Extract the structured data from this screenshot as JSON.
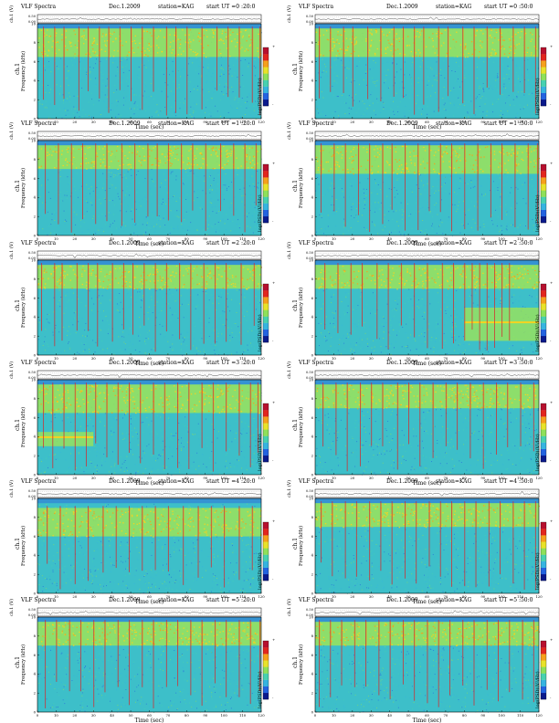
{
  "chart_data": [
    {
      "type": "heatmap",
      "title": "VLF Spectra",
      "date": "Dec.1.2009",
      "station": "station=KAG",
      "start": "start  UT  =0 :20:0",
      "ch_label": "ch.1 (V)",
      "ch_ticks": [
        "0.00",
        "0.50"
      ],
      "channel": "ch.1",
      "ylabel": "Frequency  (kHz)",
      "xlabel": "Time  (sec)",
      "x_ticks": [
        "0",
        "10",
        "20",
        "30",
        "40",
        "50",
        "60",
        "70",
        "80",
        "90",
        "100",
        "110",
        "120"
      ],
      "y_ticks": [
        "0",
        "2",
        "4",
        "6",
        "8",
        "10"
      ],
      "xlim": [
        0,
        120
      ],
      "ylim": [
        0,
        10
      ],
      "colorbar_label": "log(PSD)(V²/Hz)",
      "colorbar_ticks": [
        "-",
        "+"
      ],
      "band_khz": [
        6.5,
        9.5
      ],
      "bursts_sec": [
        3,
        9,
        14,
        22,
        27,
        33,
        38,
        44,
        50,
        56,
        62,
        69,
        74,
        80,
        88,
        96,
        102,
        108,
        115,
        119
      ]
    },
    {
      "type": "heatmap",
      "title": "VLF Spectra",
      "date": "Dec.1.2009",
      "station": "station=KAG",
      "start": "start  UT  =0 :50:0",
      "ch_label": "ch.1 (V)",
      "ch_ticks": [
        "0.00",
        "0.50"
      ],
      "channel": "ch.1",
      "ylabel": "Frequency  (kHz)",
      "xlabel": "Time  (sec)",
      "x_ticks": [
        "0",
        "10",
        "20",
        "30",
        "40",
        "50",
        "60",
        "70",
        "80",
        "90",
        "100",
        "110",
        "120"
      ],
      "y_ticks": [
        "0",
        "2",
        "4",
        "6",
        "8",
        "10"
      ],
      "xlim": [
        0,
        120
      ],
      "ylim": [
        0,
        10
      ],
      "colorbar_label": "log(PSD)(V²/Hz)",
      "colorbar_ticks": [
        "-",
        "+"
      ],
      "band_khz": [
        6.5,
        9.5
      ],
      "bursts_sec": [
        2,
        8,
        15,
        20,
        28,
        35,
        42,
        47,
        53,
        58,
        66,
        71,
        79,
        85,
        92,
        99,
        106,
        112,
        118
      ]
    },
    {
      "type": "heatmap",
      "title": "VLF Spectra",
      "date": "Dec.1.2009",
      "station": "station=KAG",
      "start": "start  UT  =1 :20:0",
      "ch_label": "ch.1 (V)",
      "ch_ticks": [
        "0.00",
        "0.50"
      ],
      "channel": "ch.1",
      "ylabel": "Frequency  (kHz)",
      "xlabel": "Time  (sec)",
      "x_ticks": [
        "0",
        "10",
        "20",
        "30",
        "40",
        "50",
        "60",
        "70",
        "80",
        "90",
        "100",
        "110",
        "120"
      ],
      "y_ticks": [
        "0",
        "2",
        "4",
        "6",
        "8",
        "10"
      ],
      "xlim": [
        0,
        120
      ],
      "ylim": [
        0,
        10
      ],
      "colorbar_label": "log(PSD)(V²/Hz)",
      "colorbar_ticks": [
        "-",
        "+"
      ],
      "band_khz": [
        7.0,
        9.5
      ],
      "bursts_sec": [
        4,
        11,
        18,
        24,
        31,
        37,
        45,
        52,
        59,
        64,
        70,
        77,
        83,
        90,
        98,
        105,
        111,
        117
      ]
    },
    {
      "type": "heatmap",
      "title": "VLF Spectra",
      "date": "Dec.1.2009",
      "station": "station=KAG",
      "start": "start  UT  =1 :50:0",
      "ch_label": "ch.1 (V)",
      "ch_ticks": [
        "0.00",
        "0.50"
      ],
      "channel": "ch.1",
      "ylabel": "Frequency  (kHz)",
      "xlabel": "Time  (sec)",
      "x_ticks": [
        "0",
        "10",
        "20",
        "30",
        "40",
        "50",
        "60",
        "70",
        "80",
        "90",
        "100",
        "110",
        "120"
      ],
      "y_ticks": [
        "0",
        "2",
        "4",
        "6",
        "8",
        "10"
      ],
      "xlim": [
        0,
        120
      ],
      "ylim": [
        0,
        10
      ],
      "colorbar_label": "log(PSD)(V²/Hz)",
      "colorbar_ticks": [
        "-",
        "+"
      ],
      "band_khz": [
        6.5,
        9.5
      ],
      "bursts_sec": [
        3,
        10,
        16,
        23,
        29,
        36,
        41,
        48,
        55,
        61,
        67,
        73,
        80,
        87,
        94,
        100,
        107,
        114,
        119
      ]
    },
    {
      "type": "heatmap",
      "title": "VLF Spectra",
      "date": "Dec.1.2009",
      "station": "station=KAG",
      "start": "start  UT  =2 :20:0",
      "ch_label": "ch.1 (V)",
      "ch_ticks": [
        "0.00",
        "0.50"
      ],
      "channel": "ch.1",
      "ylabel": "Frequency  (kHz)",
      "xlabel": "Time  (sec)",
      "x_ticks": [
        "0",
        "10",
        "20",
        "30",
        "40",
        "50",
        "60",
        "70",
        "80",
        "90",
        "100",
        "110",
        "120"
      ],
      "y_ticks": [
        "0",
        "2",
        "4",
        "6",
        "8",
        "10"
      ],
      "xlim": [
        0,
        120
      ],
      "ylim": [
        0,
        10
      ],
      "colorbar_label": "log(PSD)(V²/Hz)",
      "colorbar_ticks": [
        "-",
        "+"
      ],
      "band_khz": [
        7.0,
        9.5
      ],
      "bursts_sec": [
        2,
        9,
        13,
        21,
        27,
        32,
        40,
        46,
        51,
        57,
        63,
        69,
        76,
        82,
        89,
        95,
        101,
        109,
        116
      ]
    },
    {
      "type": "heatmap",
      "title": "VLF Spectra",
      "date": "Dec.1.2009",
      "station": "station=KAG",
      "start": "start  UT  =2 :50:0",
      "ch_label": "ch.1 (V)",
      "ch_ticks": [
        "0.00",
        "0.50"
      ],
      "channel": "ch.1",
      "ylabel": "Frequency  (kHz)",
      "xlabel": "Time  (sec)",
      "x_ticks": [
        "0",
        "10",
        "20",
        "30",
        "40",
        "50",
        "60",
        "70",
        "80",
        "90",
        "100",
        "110",
        "120"
      ],
      "y_ticks": [
        "0",
        "2",
        "4",
        "6",
        "8",
        "10"
      ],
      "xlim": [
        0,
        120
      ],
      "ylim": [
        0,
        10
      ],
      "colorbar_label": "log(PSD)(V²/Hz)",
      "colorbar_ticks": [
        "-",
        "+"
      ],
      "band_khz": [
        7.0,
        9.5
      ],
      "bursts_sec": [
        5,
        12,
        19,
        25,
        33,
        39,
        46,
        53,
        60,
        68,
        74,
        80,
        84,
        88,
        92,
        96,
        100,
        104
      ],
      "low_patch": {
        "t0": 80,
        "t1": 120,
        "f0": 1.5,
        "f1": 5.0
      }
    },
    {
      "type": "heatmap",
      "title": "VLF Spectra",
      "date": "Dec.1.2009",
      "station": "station=KAG",
      "start": "start  UT  =3 :20:0",
      "ch_label": "ch.1 (V)",
      "ch_ticks": [
        "0.00",
        "0.50"
      ],
      "channel": "ch.1",
      "ylabel": "Frequency  (kHz)",
      "xlabel": "Time  (sec)",
      "x_ticks": [
        "0",
        "10",
        "20",
        "30",
        "40",
        "50",
        "60",
        "70",
        "80",
        "90",
        "100",
        "110",
        "120"
      ],
      "y_ticks": [
        "0",
        "2",
        "4",
        "6",
        "8",
        "10"
      ],
      "xlim": [
        0,
        120
      ],
      "ylim": [
        0,
        10
      ],
      "colorbar_label": "log(PSD)(V²/Hz)",
      "colorbar_ticks": [
        "-",
        "+"
      ],
      "band_khz": [
        6.5,
        9.5
      ],
      "bursts_sec": [
        3,
        8,
        14,
        20,
        26,
        31,
        37,
        43,
        49,
        55,
        62,
        68,
        75,
        81,
        88,
        94,
        101,
        108,
        114,
        118
      ],
      "low_patch": {
        "t0": 0,
        "t1": 30,
        "f0": 3.0,
        "f1": 4.5
      }
    },
    {
      "type": "heatmap",
      "title": "VLF Spectra",
      "date": "Dec.1.2009",
      "station": "station=KAG",
      "start": "start  UT  =3 :50:0",
      "ch_label": "ch.1 (V)",
      "ch_ticks": [
        "0.00",
        "0.50"
      ],
      "channel": "ch.1",
      "ylabel": "Frequency  (kHz)",
      "xlabel": "Time  (sec)",
      "x_ticks": [
        "0",
        "10",
        "20",
        "30",
        "40",
        "50",
        "60",
        "70",
        "80",
        "90",
        "100",
        "110",
        "120"
      ],
      "y_ticks": [
        "0",
        "2",
        "4",
        "6",
        "8",
        "10"
      ],
      "xlim": [
        0,
        120
      ],
      "ylim": [
        0,
        10
      ],
      "colorbar_label": "log(PSD)(V²/Hz)",
      "colorbar_ticks": [
        "-",
        "+"
      ],
      "band_khz": [
        7.0,
        9.5
      ],
      "bursts_sec": [
        4,
        11,
        17,
        24,
        30,
        36,
        44,
        50,
        56,
        63,
        70,
        76,
        83,
        90,
        97,
        103,
        110,
        117
      ]
    },
    {
      "type": "heatmap",
      "title": "VLF Spectra",
      "date": "Dec.1.2009",
      "station": "station=KAG",
      "start": "start  UT  =4 :20:0",
      "ch_label": "ch.1 (V)",
      "ch_ticks": [
        "0.00",
        "0.50"
      ],
      "channel": "ch.1",
      "ylabel": "Frequency  (kHz)",
      "xlabel": "Time  (sec)",
      "x_ticks": [
        "0",
        "10",
        "20",
        "30",
        "40",
        "50",
        "60",
        "70",
        "80",
        "90",
        "100",
        "110",
        "120"
      ],
      "y_ticks": [
        "0",
        "2",
        "4",
        "6",
        "8",
        "10"
      ],
      "xlim": [
        0,
        120
      ],
      "ylim": [
        0,
        10
      ],
      "colorbar_label": "log(PSD)(V²/Hz)",
      "colorbar_ticks": [
        "-",
        "+"
      ],
      "band_khz": [
        6.0,
        9.0
      ],
      "bursts_sec": [
        5,
        12,
        20,
        27,
        35,
        42,
        49,
        56,
        63,
        70,
        78,
        86,
        93,
        100,
        108,
        115
      ]
    },
    {
      "type": "heatmap",
      "title": "VLF Spectra",
      "date": "Dec.1.2009",
      "station": "station=KAG",
      "start": "start  UT  =4 :50:0",
      "ch_label": "ch.1 (V)",
      "ch_ticks": [
        "0.00",
        "0.50"
      ],
      "channel": "ch.1",
      "ylabel": "Frequency  (kHz)",
      "xlabel": "Time  (sec)",
      "x_ticks": [
        "0",
        "10",
        "20",
        "30",
        "40",
        "50",
        "60",
        "70",
        "80",
        "90",
        "100",
        "110",
        "120"
      ],
      "y_ticks": [
        "0",
        "2",
        "4",
        "6",
        "8",
        "10"
      ],
      "xlim": [
        0,
        120
      ],
      "ylim": [
        0,
        10
      ],
      "colorbar_label": "log(PSD)(V²/Hz)",
      "colorbar_ticks": [
        "-",
        "+"
      ],
      "band_khz": [
        7.0,
        9.5
      ],
      "bursts_sec": [
        3,
        9,
        16,
        22,
        29,
        35,
        41,
        48,
        54,
        61,
        67,
        73,
        80,
        86,
        93,
        99,
        106,
        112,
        118
      ]
    },
    {
      "type": "heatmap",
      "title": "VLF Spectra",
      "date": "Dec.1.2009",
      "station": "station=KAG",
      "start": "start  UT  =5 :20:0",
      "ch_label": "ch.1 (V)",
      "ch_ticks": [
        "0.00",
        "0.50"
      ],
      "channel": "ch.1",
      "ylabel": "Frequency  (kHz)",
      "xlabel": "Time  (sec)",
      "x_ticks": [
        "0",
        "10",
        "20",
        "30",
        "40",
        "50",
        "60",
        "70",
        "80",
        "90",
        "100",
        "110",
        "120"
      ],
      "y_ticks": [
        "0",
        "2",
        "4",
        "6",
        "8",
        "10"
      ],
      "xlim": [
        0,
        120
      ],
      "ylim": [
        0,
        10
      ],
      "colorbar_label": "log(PSD)(V²/Hz)",
      "colorbar_ticks": [
        "-",
        "+"
      ],
      "band_khz": [
        7.0,
        9.5
      ],
      "bursts_sec": [
        4,
        10,
        17,
        23,
        30,
        36,
        43,
        49,
        56,
        62,
        69,
        75,
        82,
        88,
        95,
        101,
        108,
        114,
        119
      ]
    },
    {
      "type": "heatmap",
      "title": "VLF Spectra",
      "date": "Dec.1.2009",
      "station": "station=KAG",
      "start": "start  UT  =5 :50:0",
      "ch_label": "ch.1 (V)",
      "ch_ticks": [
        "0.00",
        "0.50"
      ],
      "channel": "ch.1",
      "ylabel": "Frequency  (kHz)",
      "xlabel": "Time  (sec)",
      "x_ticks": [
        "0",
        "10",
        "20",
        "30",
        "40",
        "50",
        "60",
        "70",
        "80",
        "90",
        "100",
        "110",
        "120"
      ],
      "y_ticks": [
        "0",
        "2",
        "4",
        "6",
        "8",
        "10"
      ],
      "xlim": [
        0,
        120
      ],
      "ylim": [
        0,
        10
      ],
      "colorbar_label": "log(PSD)(V²/Hz)",
      "colorbar_ticks": [
        "-",
        "+"
      ],
      "band_khz": [
        7.0,
        9.5
      ],
      "bursts_sec": [
        2,
        8,
        14,
        21,
        27,
        34,
        40,
        47,
        53,
        60,
        66,
        72,
        79,
        85,
        92,
        98,
        104,
        111,
        117
      ]
    }
  ],
  "colors": {
    "background": "#3dbfc9",
    "band": "#9be35a",
    "band_hot": "#ffd21a",
    "burst": "#d8262a",
    "quiet_top": "#2f6fd8",
    "colormap": [
      "#0b1a8c",
      "#2463e0",
      "#36b4e0",
      "#47d1b0",
      "#8ee05a",
      "#e8e22a",
      "#f6a01c",
      "#e2261f",
      "#b7102f"
    ]
  }
}
